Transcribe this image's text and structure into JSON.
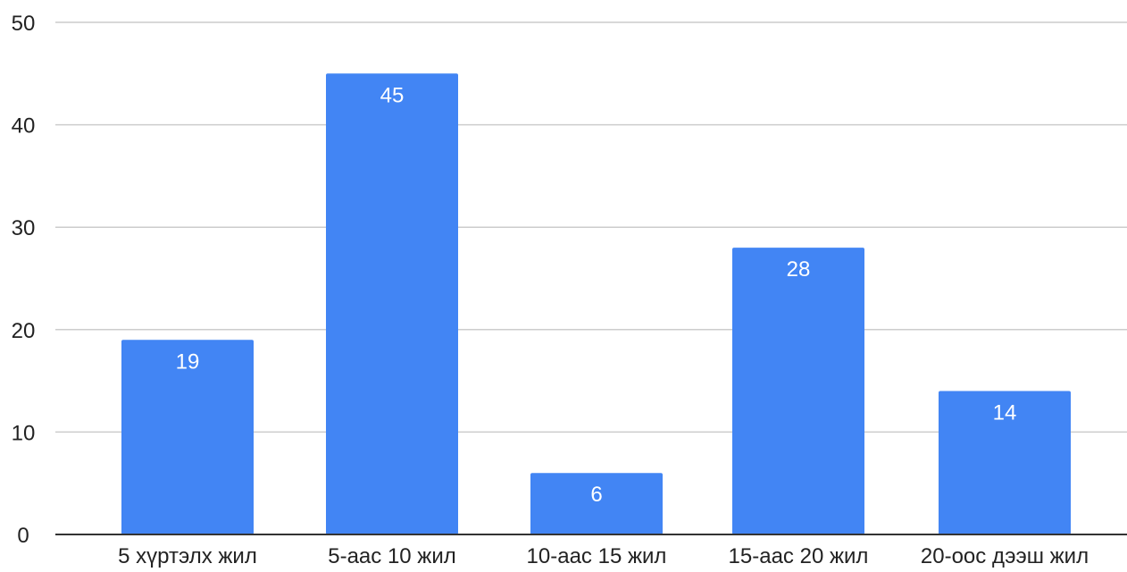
{
  "chart_data": {
    "type": "bar",
    "categories": [
      "5 хүртэлх жил",
      "5-аас 10 жил",
      "10-аас 15 жил",
      "15-аас 20 жил",
      "20-оос дээш жил"
    ],
    "values": [
      19,
      45,
      6,
      28,
      14
    ],
    "data_labels": [
      "19",
      "45",
      "6",
      "28",
      "14"
    ],
    "title": "",
    "xlabel": "",
    "ylabel": "",
    "ylim": [
      0,
      50
    ],
    "yticks": [
      0,
      10,
      20,
      30,
      40,
      50
    ],
    "grid": true,
    "legend": "none",
    "colors": {
      "bar": "#4285f4",
      "grid": "#cccccc",
      "axis": "#333333",
      "label_on_bar": "#ffffff"
    }
  }
}
